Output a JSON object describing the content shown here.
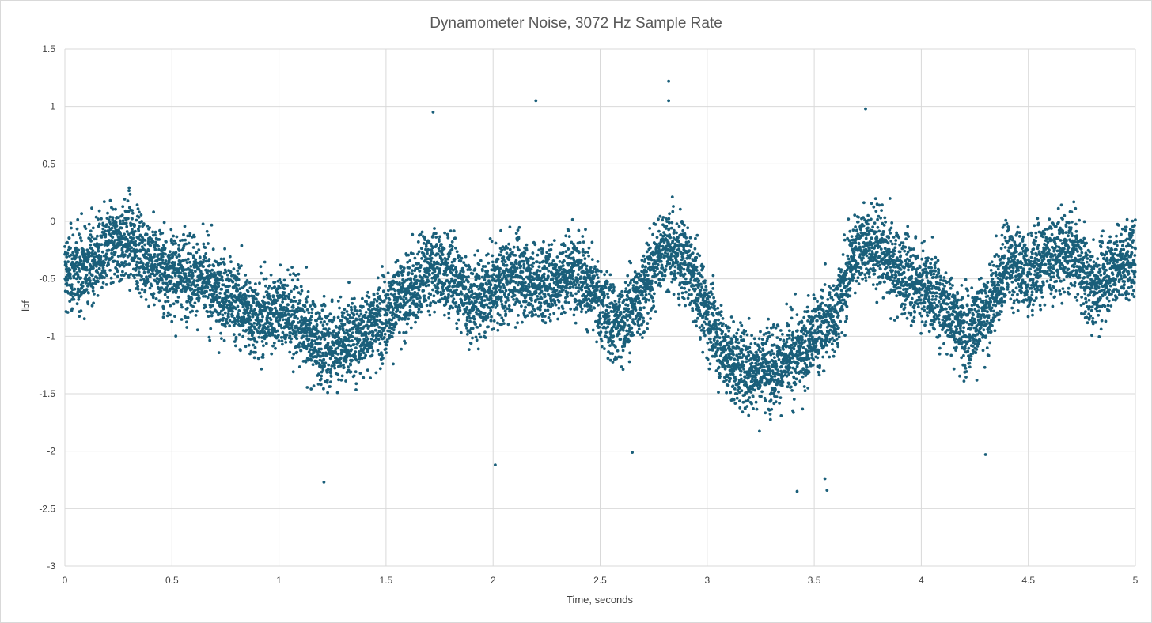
{
  "chart_data": {
    "type": "scatter",
    "title": "Dynamometer Noise, 3072 Hz Sample Rate",
    "xlabel": "Time, seconds",
    "ylabel": "lbf",
    "xlim": [
      0,
      5
    ],
    "ylim": [
      -3,
      1.5
    ],
    "x_ticks": [
      0,
      0.5,
      1,
      1.5,
      2,
      2.5,
      3,
      3.5,
      4,
      4.5,
      5
    ],
    "y_ticks": [
      1.5,
      1,
      0.5,
      0,
      -0.5,
      -1,
      -1.5,
      -2,
      -2.5,
      -3
    ],
    "grid": true,
    "legend": "none",
    "marker_color": "#1a5f7a",
    "sample_rate_hz": 3072,
    "trend": [
      [
        0.0,
        -0.45
      ],
      [
        0.1,
        -0.4
      ],
      [
        0.2,
        -0.25
      ],
      [
        0.3,
        -0.15
      ],
      [
        0.4,
        -0.35
      ],
      [
        0.5,
        -0.45
      ],
      [
        0.6,
        -0.45
      ],
      [
        0.7,
        -0.6
      ],
      [
        0.8,
        -0.7
      ],
      [
        0.9,
        -0.85
      ],
      [
        1.0,
        -0.75
      ],
      [
        1.1,
        -0.9
      ],
      [
        1.2,
        -1.1
      ],
      [
        1.3,
        -1.05
      ],
      [
        1.4,
        -0.95
      ],
      [
        1.5,
        -0.8
      ],
      [
        1.6,
        -0.65
      ],
      [
        1.7,
        -0.4
      ],
      [
        1.8,
        -0.45
      ],
      [
        1.9,
        -0.7
      ],
      [
        2.0,
        -0.6
      ],
      [
        2.1,
        -0.45
      ],
      [
        2.2,
        -0.55
      ],
      [
        2.3,
        -0.5
      ],
      [
        2.4,
        -0.4
      ],
      [
        2.5,
        -0.75
      ],
      [
        2.6,
        -0.9
      ],
      [
        2.7,
        -0.6
      ],
      [
        2.8,
        -0.2
      ],
      [
        2.9,
        -0.35
      ],
      [
        3.0,
        -0.8
      ],
      [
        3.1,
        -1.2
      ],
      [
        3.2,
        -1.3
      ],
      [
        3.3,
        -1.25
      ],
      [
        3.4,
        -1.2
      ],
      [
        3.5,
        -1.0
      ],
      [
        3.6,
        -0.8
      ],
      [
        3.7,
        -0.2
      ],
      [
        3.8,
        -0.25
      ],
      [
        3.9,
        -0.45
      ],
      [
        4.0,
        -0.55
      ],
      [
        4.1,
        -0.7
      ],
      [
        4.2,
        -0.95
      ],
      [
        4.3,
        -0.85
      ],
      [
        4.4,
        -0.35
      ],
      [
        4.5,
        -0.45
      ],
      [
        4.6,
        -0.3
      ],
      [
        4.7,
        -0.25
      ],
      [
        4.8,
        -0.6
      ],
      [
        4.9,
        -0.4
      ],
      [
        5.0,
        -0.3
      ]
    ],
    "noise_std_lbf": 0.34,
    "notable_points": [
      {
        "x": 2.82,
        "y": 1.22
      },
      {
        "x": 2.2,
        "y": 1.05
      },
      {
        "x": 2.82,
        "y": 1.05
      },
      {
        "x": 3.74,
        "y": 0.98
      },
      {
        "x": 1.72,
        "y": 0.95
      },
      {
        "x": 1.21,
        "y": -2.27
      },
      {
        "x": 2.01,
        "y": -2.12
      },
      {
        "x": 3.42,
        "y": -2.35
      },
      {
        "x": 3.56,
        "y": -2.34
      },
      {
        "x": 3.55,
        "y": -2.24
      },
      {
        "x": 4.3,
        "y": -2.03
      },
      {
        "x": 2.65,
        "y": -2.01
      }
    ]
  }
}
